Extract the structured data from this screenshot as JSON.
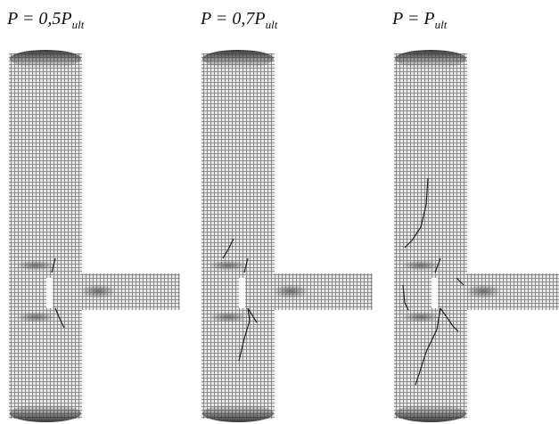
{
  "panels": [
    {
      "label": "P = 0,5P",
      "subscript": "ult"
    },
    {
      "label": "P = 0,7P",
      "subscript": "ult"
    },
    {
      "label": "P = P",
      "subscript": "ult"
    }
  ]
}
